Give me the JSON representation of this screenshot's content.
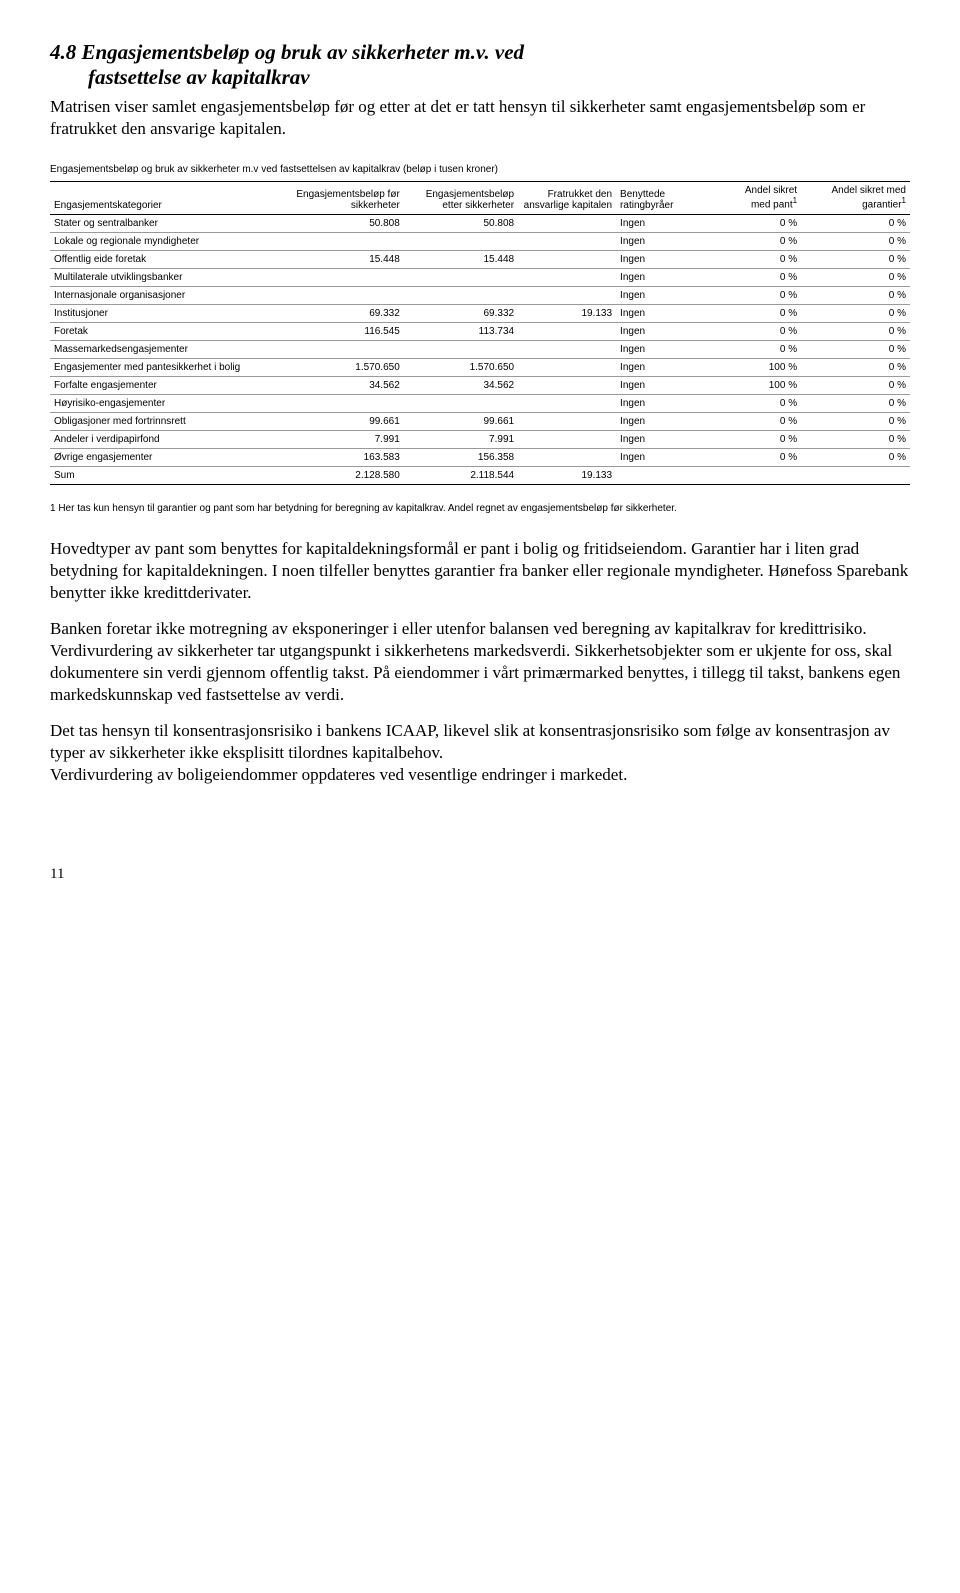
{
  "heading": {
    "line1": "4.8 Engasjementsbeløp og bruk av sikkerheter m.v. ved",
    "line2": "fastsettelse av kapitalkrav"
  },
  "intro": "Matrisen viser samlet engasjementsbeløp før og etter at det er tatt hensyn til sikkerheter samt engasjementsbeløp som er fratrukket den ansvarige kapitalen.",
  "table_caption": "Engasjementsbeløp og bruk av sikkerheter m.v ved fastsettelsen av kapitalkrav (beløp i tusen kroner)",
  "columns": {
    "c0": "Engasjementskategorier",
    "c1": "Engasjementsbeløp før sikkerheter",
    "c2": "Engasjementsbeløp etter sikkerheter",
    "c3": "Fratrukket den ansvarlige kapitalen",
    "c4": "Benyttede ratingbyråer",
    "c5_a": "Andel sikret",
    "c5_b": "med pant",
    "c6_a": "Andel sikret med",
    "c6_b": "garantier"
  },
  "rows": [
    {
      "label": "Stater og sentralbanker",
      "before": "50.808",
      "after": "50.808",
      "frat": "",
      "rating": "Ingen",
      "pant": "0 %",
      "gar": "0 %"
    },
    {
      "label": "Lokale og regionale myndigheter",
      "before": "",
      "after": "",
      "frat": "",
      "rating": "Ingen",
      "pant": "0 %",
      "gar": "0 %"
    },
    {
      "label": "Offentlig eide foretak",
      "before": "15.448",
      "after": "15.448",
      "frat": "",
      "rating": "Ingen",
      "pant": "0 %",
      "gar": "0 %"
    },
    {
      "label": "Multilaterale utviklingsbanker",
      "before": "",
      "after": "",
      "frat": "",
      "rating": "Ingen",
      "pant": "0 %",
      "gar": "0 %"
    },
    {
      "label": "Internasjonale organisasjoner",
      "before": "",
      "after": "",
      "frat": "",
      "rating": "Ingen",
      "pant": "0 %",
      "gar": "0 %"
    },
    {
      "label": "Institusjoner",
      "before": "69.332",
      "after": "69.332",
      "frat": "19.133",
      "rating": "Ingen",
      "pant": "0 %",
      "gar": "0 %"
    },
    {
      "label": "Foretak",
      "before": "116.545",
      "after": "113.734",
      "frat": "",
      "rating": "Ingen",
      "pant": "0 %",
      "gar": "0 %"
    },
    {
      "label": "Massemarkedsengasjementer",
      "before": "",
      "after": "",
      "frat": "",
      "rating": "Ingen",
      "pant": "0 %",
      "gar": "0 %"
    },
    {
      "label": "Engasjementer med pantesikkerhet i bolig",
      "before": "1.570.650",
      "after": "1.570.650",
      "frat": "",
      "rating": "Ingen",
      "pant": "100 %",
      "gar": "0 %"
    },
    {
      "label": "Forfalte engasjementer",
      "before": "34.562",
      "after": "34.562",
      "frat": "",
      "rating": "Ingen",
      "pant": "100 %",
      "gar": "0 %"
    },
    {
      "label": "Høyrisiko-engasjementer",
      "before": "",
      "after": "",
      "frat": "",
      "rating": "Ingen",
      "pant": "0 %",
      "gar": "0 %"
    },
    {
      "label": "Obligasjoner med fortrinnsrett",
      "before": "99.661",
      "after": "99.661",
      "frat": "",
      "rating": "Ingen",
      "pant": "0 %",
      "gar": "0 %"
    },
    {
      "label": "Andeler i verdipapirfond",
      "before": "7.991",
      "after": "7.991",
      "frat": "",
      "rating": "Ingen",
      "pant": "0 %",
      "gar": "0 %"
    },
    {
      "label": "Øvrige engasjementer",
      "before": "163.583",
      "after": "156.358",
      "frat": "",
      "rating": "Ingen",
      "pant": "0 %",
      "gar": "0 %"
    }
  ],
  "sum_row": {
    "label": "Sum",
    "before": "2.128.580",
    "after": "2.118.544",
    "frat": "19.133",
    "rating": "",
    "pant": "",
    "gar": ""
  },
  "footnote": "1 Her tas kun hensyn til garantier og pant som har betydning for beregning av kapitalkrav. Andel regnet av engasjementsbeløp før sikkerheter.",
  "paragraphs": [
    "Hovedtyper av pant som benyttes for kapitaldekningsformål er pant i bolig og fritidseiendom. Garantier har i liten grad betydning for kapitaldekningen. I noen tilfeller benyttes garantier fra banker eller regionale myndigheter. Hønefoss Sparebank benytter ikke kredittderivater.",
    "Banken foretar ikke motregning av eksponeringer i eller utenfor balansen ved beregning av kapitalkrav for kredittrisiko. Verdivurdering av sikkerheter tar utgangspunkt i sikkerhetens markedsverdi. Sikkerhetsobjekter som er ukjente for oss, skal dokumentere sin verdi gjennom offentlig takst. På eiendommer i vårt primærmarked benyttes, i tillegg til takst, bankens egen markedskunnskap ved fastsettelse av verdi.",
    "Det tas hensyn til konsentrasjonsrisiko i bankens ICAAP, likevel slik at konsentrasjonsrisiko som følge av konsentrasjon av typer av sikkerheter ikke eksplisitt tilordnes kapitalbehov.",
    "Verdivurdering av boligeiendommer oppdateres ved vesentlige endringer i markedet."
  ],
  "page_number": "11",
  "table_style": {
    "col_widths": [
      "220px",
      "105px",
      "105px",
      "90px",
      "80px",
      "90px",
      "100px"
    ]
  }
}
